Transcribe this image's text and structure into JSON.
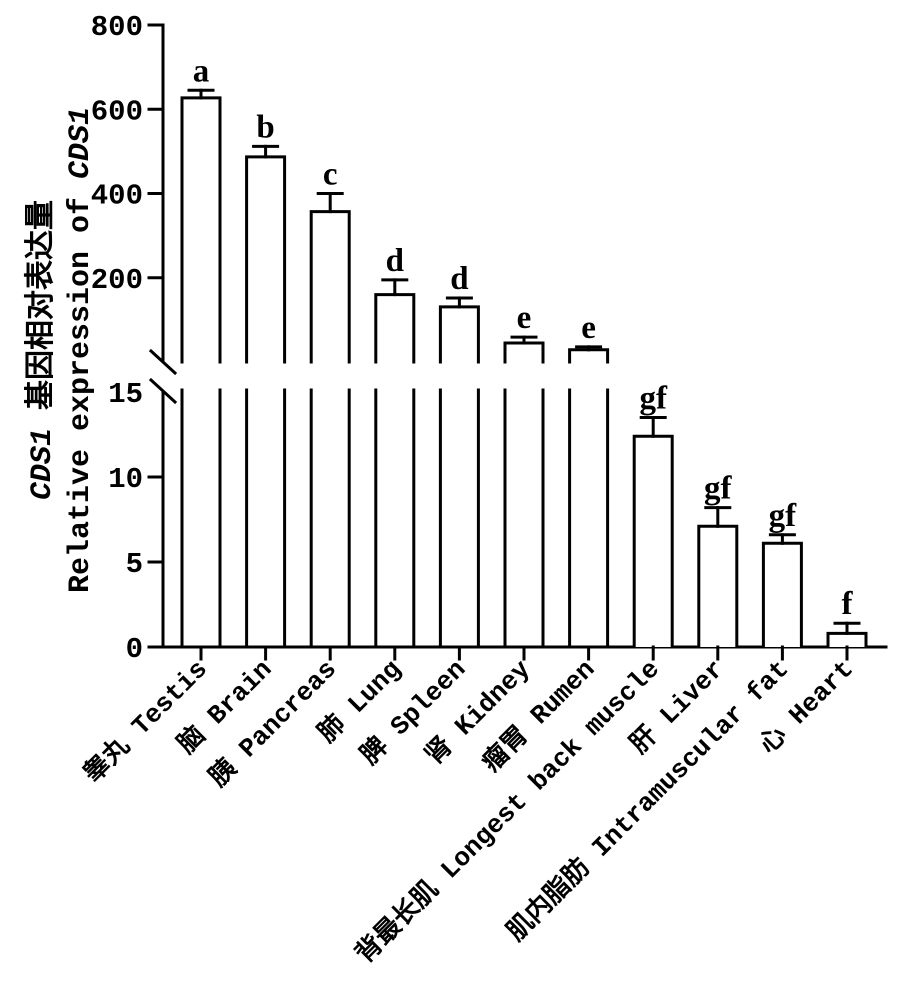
{
  "figure": {
    "background_color": "#ffffff",
    "ink_color": "#000000",
    "description": "Bar chart with broken y-axis of relative CDS1 gene expression in tissues"
  },
  "chart_data": {
    "type": "bar",
    "title": "",
    "gene": "CDS1",
    "ylabel_line1": "CDS1 基因相对表达量",
    "ylabel_line2": "Relative expression of CDS1",
    "xlabel": "",
    "bar_fill": "#ffffff",
    "bar_stroke": "#000000",
    "axis": {
      "broken": true,
      "upper_segment_range": [
        0,
        800
      ],
      "upper_ticks": [
        200,
        400,
        600,
        800
      ],
      "lower_segment_range": [
        0,
        15
      ],
      "lower_ticks": [
        0,
        5,
        10
      ],
      "lower_top_label": "15",
      "grid": false,
      "legend": "none"
    },
    "categories": [
      "睾丸 Testis",
      "脑 Brain",
      "胰 Pancreas",
      "肺 Lung",
      "脾 Spleen",
      "肾 Kidney",
      "瘤胃 Rumen",
      "背最长肌 Longest back muscle",
      "肝 Liver",
      "肌内脂肪 Intramuscular fat",
      "心 Heart"
    ],
    "values": [
      627,
      487,
      357,
      160,
      131,
      45,
      29,
      12.4,
      7.1,
      6.1,
      0.8
    ],
    "errors": [
      18,
      25,
      43,
      35,
      21,
      14,
      7,
      1.1,
      1.1,
      0.5,
      0.6
    ],
    "sig_letters": [
      "a",
      "b",
      "c",
      "d",
      "d",
      "e",
      "e",
      "gf",
      "gf",
      "gf",
      "f"
    ]
  }
}
